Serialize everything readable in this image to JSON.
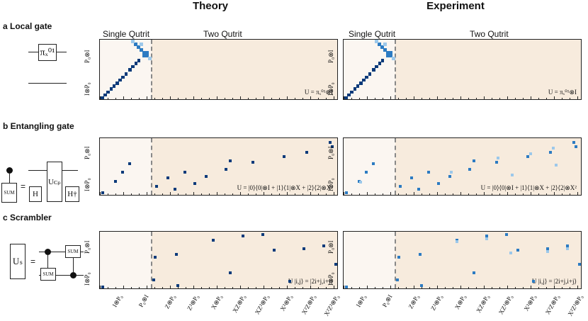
{
  "headers": {
    "theory": "Theory",
    "experiment": "Experiment"
  },
  "sections": {
    "a": "a Local gate",
    "b": "b Entangling gate",
    "c": "c Scrambler"
  },
  "panel_labels": {
    "single": "Single Qutrit",
    "two": "Two Qutrit"
  },
  "y_labels": {
    "top": "P₀⊗I",
    "bottom": "I⊗P₀"
  },
  "x_labels": [
    "I⊗P₀",
    "P₀⊗I",
    "Z⊗P₀",
    "Z²⊗P₀",
    "X⊗P₀",
    "XZ⊗P₀",
    "XZ²⊗P₀",
    "X²⊗P₀",
    "X²Z⊗P₀",
    "X²Z²⊗P₀"
  ],
  "equations": {
    "a": "U = πₓ⁰¹⊗I",
    "b": "U = |0⟩⟨0|⊗I + |1⟩⟨1|⊗X + |2⟩⟨2|⊗X²",
    "c": "U |i,j⟩ = |2i+j,i+j⟩"
  },
  "circuit": {
    "a_gate": "πₓ⁰¹",
    "b_sum": "SUM",
    "b_eq": "=",
    "b_h": "H",
    "b_ucp": "Uᴄₚ",
    "b_hdag": "H†",
    "c_us": "Uₛ",
    "c_eq": "=",
    "c_sum1": "SUM",
    "c_sum2": "SUM"
  },
  "colors": {
    "dark": "#0b3a7a",
    "mid": "#2c7bc2",
    "light": "#9cc8ea",
    "bg": "#f7ebdd"
  }
}
